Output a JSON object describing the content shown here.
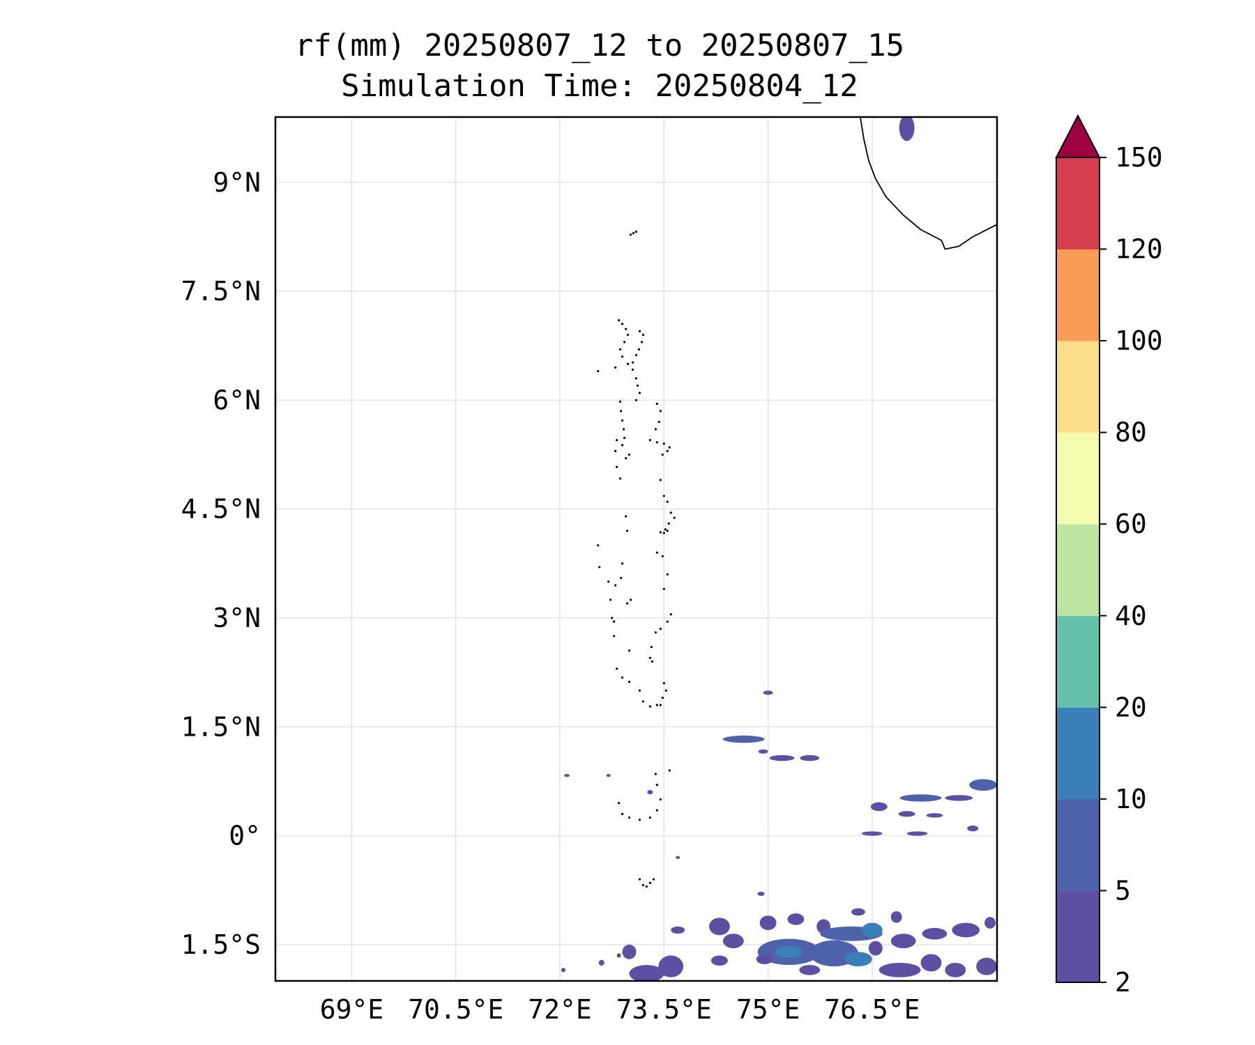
{
  "title": {
    "line1": "rf(mm) 20250807_12 to 20250807_15",
    "line2": "Simulation Time: 20250804_12"
  },
  "map": {
    "lon_range": [
      67.9,
      78.3
    ],
    "lat_range": [
      -2.0,
      9.9
    ],
    "gridlines": true,
    "lon_ticks": [
      {
        "value": 69,
        "label": "69°E"
      },
      {
        "value": 70.5,
        "label": "70.5°E"
      },
      {
        "value": 72,
        "label": "72°E"
      },
      {
        "value": 73.5,
        "label": "73.5°E"
      },
      {
        "value": 75,
        "label": "75°E"
      },
      {
        "value": 76.5,
        "label": "76.5°E"
      }
    ],
    "lat_ticks": [
      {
        "value": 9,
        "label": "9°N"
      },
      {
        "value": 7.5,
        "label": "7.5°N"
      },
      {
        "value": 6,
        "label": "6°N"
      },
      {
        "value": 4.5,
        "label": "4.5°N"
      },
      {
        "value": 3,
        "label": "3°N"
      },
      {
        "value": 1.5,
        "label": "1.5°N"
      },
      {
        "value": 0,
        "label": "0°"
      },
      {
        "value": -1.5,
        "label": "1.5°S"
      }
    ]
  },
  "colorbar": {
    "levels": [
      "2",
      "5",
      "10",
      "20",
      "40",
      "60",
      "80",
      "100",
      "120",
      "150"
    ],
    "colors": [
      "#5e4fa2",
      "#4e62ab",
      "#3a7fb8",
      "#63c0ab",
      "#bde4a0",
      "#f4fbac",
      "#fddf8b",
      "#f99c58",
      "#d53e4f",
      "#9e0142"
    ],
    "extend": "max"
  },
  "rain_cells": [
    {
      "lon": 75.0,
      "lat": 1.97,
      "rlon": 0.07,
      "rlat": 0.03,
      "cls": 0
    },
    {
      "lon": 74.65,
      "lat": 1.33,
      "rlon": 0.3,
      "rlat": 0.05,
      "cls": 1
    },
    {
      "lon": 74.93,
      "lat": 1.16,
      "rlon": 0.07,
      "rlat": 0.03,
      "cls": 0
    },
    {
      "lon": 75.2,
      "lat": 1.07,
      "rlon": 0.18,
      "rlat": 0.04,
      "cls": 0
    },
    {
      "lon": 75.6,
      "lat": 1.07,
      "rlon": 0.14,
      "rlat": 0.04,
      "cls": 0
    },
    {
      "lon": 72.1,
      "lat": 0.83,
      "rlon": 0.04,
      "rlat": 0.02,
      "cls": 0
    },
    {
      "lon": 72.7,
      "lat": 0.83,
      "rlon": 0.03,
      "rlat": 0.02,
      "cls": 0
    },
    {
      "lon": 73.3,
      "lat": 0.6,
      "rlon": 0.04,
      "rlat": 0.03,
      "cls": 0
    },
    {
      "lon": 76.6,
      "lat": 0.4,
      "rlon": 0.12,
      "rlat": 0.06,
      "cls": 0
    },
    {
      "lon": 77.2,
      "lat": 0.52,
      "rlon": 0.3,
      "rlat": 0.05,
      "cls": 1
    },
    {
      "lon": 77.75,
      "lat": 0.52,
      "rlon": 0.2,
      "rlat": 0.04,
      "cls": 0
    },
    {
      "lon": 78.1,
      "lat": 0.7,
      "rlon": 0.2,
      "rlat": 0.08,
      "cls": 1
    },
    {
      "lon": 77.0,
      "lat": 0.3,
      "rlon": 0.12,
      "rlat": 0.04,
      "cls": 0
    },
    {
      "lon": 77.4,
      "lat": 0.28,
      "rlon": 0.12,
      "rlat": 0.03,
      "cls": 0
    },
    {
      "lon": 76.5,
      "lat": 0.03,
      "rlon": 0.15,
      "rlat": 0.03,
      "cls": 0
    },
    {
      "lon": 77.15,
      "lat": 0.03,
      "rlon": 0.15,
      "rlat": 0.03,
      "cls": 0
    },
    {
      "lon": 77.95,
      "lat": 0.1,
      "rlon": 0.08,
      "rlat": 0.04,
      "cls": 0
    },
    {
      "lon": 73.7,
      "lat": -0.3,
      "rlon": 0.03,
      "rlat": 0.02,
      "cls": 0
    },
    {
      "lon": 74.9,
      "lat": -0.8,
      "rlon": 0.05,
      "rlat": 0.03,
      "cls": 0
    },
    {
      "lon": 76.3,
      "lat": -1.05,
      "rlon": 0.1,
      "rlat": 0.05,
      "cls": 0
    },
    {
      "lon": 76.85,
      "lat": -1.12,
      "rlon": 0.08,
      "rlat": 0.08,
      "cls": 0
    },
    {
      "lon": 73.7,
      "lat": -1.3,
      "rlon": 0.1,
      "rlat": 0.05,
      "cls": 0
    },
    {
      "lon": 74.3,
      "lat": -1.25,
      "rlon": 0.15,
      "rlat": 0.12,
      "cls": 0
    },
    {
      "lon": 74.5,
      "lat": -1.45,
      "rlon": 0.15,
      "rlat": 0.1,
      "cls": 0
    },
    {
      "lon": 75.0,
      "lat": -1.2,
      "rlon": 0.12,
      "rlat": 0.1,
      "cls": 0
    },
    {
      "lon": 75.4,
      "lat": -1.15,
      "rlon": 0.12,
      "rlat": 0.08,
      "cls": 0
    },
    {
      "lon": 75.8,
      "lat": -1.25,
      "rlon": 0.1,
      "rlat": 0.1,
      "cls": 0
    },
    {
      "lon": 76.2,
      "lat": -1.35,
      "rlon": 0.45,
      "rlat": 0.1,
      "cls": 1
    },
    {
      "lon": 76.5,
      "lat": -1.3,
      "rlon": 0.15,
      "rlat": 0.1,
      "cls": 2
    },
    {
      "lon": 76.95,
      "lat": -1.45,
      "rlon": 0.18,
      "rlat": 0.1,
      "cls": 0
    },
    {
      "lon": 77.4,
      "lat": -1.35,
      "rlon": 0.18,
      "rlat": 0.08,
      "cls": 0
    },
    {
      "lon": 77.85,
      "lat": -1.3,
      "rlon": 0.2,
      "rlat": 0.1,
      "cls": 0
    },
    {
      "lon": 78.2,
      "lat": -1.2,
      "rlon": 0.08,
      "rlat": 0.08,
      "cls": 0
    },
    {
      "lon": 75.3,
      "lat": -1.6,
      "rlon": 0.45,
      "rlat": 0.18,
      "cls": 1
    },
    {
      "lon": 75.3,
      "lat": -1.6,
      "rlon": 0.2,
      "rlat": 0.08,
      "cls": 2
    },
    {
      "lon": 75.95,
      "lat": -1.62,
      "rlon": 0.35,
      "rlat": 0.18,
      "cls": 1
    },
    {
      "lon": 76.3,
      "lat": -1.7,
      "rlon": 0.2,
      "rlat": 0.1,
      "cls": 2
    },
    {
      "lon": 74.95,
      "lat": -1.7,
      "rlon": 0.12,
      "rlat": 0.07,
      "cls": 0
    },
    {
      "lon": 74.3,
      "lat": -1.72,
      "rlon": 0.12,
      "rlat": 0.07,
      "cls": 0
    },
    {
      "lon": 73.6,
      "lat": -1.8,
      "rlon": 0.18,
      "rlat": 0.15,
      "cls": 0
    },
    {
      "lon": 73.25,
      "lat": -1.9,
      "rlon": 0.25,
      "rlat": 0.12,
      "cls": 0
    },
    {
      "lon": 73.0,
      "lat": -1.6,
      "rlon": 0.1,
      "rlat": 0.1,
      "cls": 0
    },
    {
      "lon": 72.6,
      "lat": -1.75,
      "rlon": 0.04,
      "rlat": 0.04,
      "cls": 0
    },
    {
      "lon": 72.05,
      "lat": -1.85,
      "rlon": 0.03,
      "rlat": 0.03,
      "cls": 0
    },
    {
      "lon": 72.85,
      "lat": -1.65,
      "rlon": 0.03,
      "rlat": 0.03,
      "cls": 0
    },
    {
      "lon": 76.9,
      "lat": -1.85,
      "rlon": 0.3,
      "rlat": 0.1,
      "cls": 0
    },
    {
      "lon": 77.35,
      "lat": -1.75,
      "rlon": 0.15,
      "rlat": 0.12,
      "cls": 0
    },
    {
      "lon": 77.7,
      "lat": -1.85,
      "rlon": 0.15,
      "rlat": 0.1,
      "cls": 0
    },
    {
      "lon": 78.15,
      "lat": -1.8,
      "rlon": 0.15,
      "rlat": 0.12,
      "cls": 0
    },
    {
      "lon": 75.6,
      "lat": -1.85,
      "rlon": 0.15,
      "rlat": 0.07,
      "cls": 0
    },
    {
      "lon": 76.55,
      "lat": -1.55,
      "rlon": 0.1,
      "rlat": 0.1,
      "cls": 0
    },
    {
      "lon": 77.0,
      "lat": 9.75,
      "rlon": 0.11,
      "rlat": 0.18,
      "cls": 0
    }
  ],
  "coastline": [
    [
      76.33,
      9.9
    ],
    [
      76.38,
      9.6
    ],
    [
      76.45,
      9.3
    ],
    [
      76.55,
      9.05
    ],
    [
      76.7,
      8.8
    ],
    [
      76.95,
      8.55
    ],
    [
      77.2,
      8.35
    ],
    [
      77.5,
      8.2
    ],
    [
      77.55,
      8.08
    ],
    [
      77.75,
      8.12
    ],
    [
      77.95,
      8.25
    ],
    [
      78.3,
      8.42
    ]
  ],
  "islands": [
    [
      73.02,
      8.28
    ],
    [
      73.06,
      8.3
    ],
    [
      73.1,
      8.32
    ],
    [
      72.85,
      7.1
    ],
    [
      72.9,
      7.05
    ],
    [
      72.95,
      6.98
    ],
    [
      72.98,
      6.9
    ],
    [
      72.93,
      6.8
    ],
    [
      72.87,
      6.7
    ],
    [
      72.9,
      6.6
    ],
    [
      72.98,
      6.5
    ],
    [
      73.05,
      6.42
    ],
    [
      73.1,
      6.3
    ],
    [
      73.12,
      6.2
    ],
    [
      73.15,
      6.1
    ],
    [
      73.1,
      6.0
    ],
    [
      73.15,
      6.95
    ],
    [
      73.2,
      6.9
    ],
    [
      73.18,
      6.8
    ],
    [
      73.14,
      6.7
    ],
    [
      73.1,
      6.62
    ],
    [
      73.05,
      6.52
    ],
    [
      72.55,
      6.4
    ],
    [
      72.8,
      6.45
    ],
    [
      72.87,
      5.98
    ],
    [
      72.88,
      5.85
    ],
    [
      72.9,
      5.72
    ],
    [
      72.92,
      5.6
    ],
    [
      72.93,
      5.48
    ],
    [
      72.9,
      5.38
    ],
    [
      72.82,
      5.45
    ],
    [
      72.8,
      5.3
    ],
    [
      72.95,
      5.2
    ],
    [
      73.0,
      5.25
    ],
    [
      72.82,
      5.08
    ],
    [
      72.87,
      4.92
    ],
    [
      73.4,
      5.95
    ],
    [
      73.45,
      5.85
    ],
    [
      73.43,
      5.7
    ],
    [
      73.38,
      5.6
    ],
    [
      73.3,
      5.45
    ],
    [
      73.4,
      5.42
    ],
    [
      73.5,
      5.4
    ],
    [
      73.58,
      5.35
    ],
    [
      73.55,
      5.3
    ],
    [
      73.48,
      5.25
    ],
    [
      73.45,
      4.9
    ],
    [
      73.5,
      4.68
    ],
    [
      73.55,
      4.6
    ],
    [
      73.6,
      4.45
    ],
    [
      73.65,
      4.38
    ],
    [
      73.57,
      4.3
    ],
    [
      73.52,
      4.22
    ],
    [
      73.45,
      4.18
    ],
    [
      73.5,
      4.17
    ],
    [
      73.55,
      4.2
    ],
    [
      72.95,
      4.4
    ],
    [
      72.97,
      4.2
    ],
    [
      72.55,
      4.0
    ],
    [
      72.57,
      3.7
    ],
    [
      72.7,
      3.5
    ],
    [
      72.8,
      3.45
    ],
    [
      72.88,
      3.55
    ],
    [
      72.9,
      3.75
    ],
    [
      73.4,
      3.9
    ],
    [
      73.48,
      3.85
    ],
    [
      73.55,
      3.6
    ],
    [
      73.5,
      3.4
    ],
    [
      73.6,
      3.05
    ],
    [
      73.55,
      2.95
    ],
    [
      73.45,
      2.85
    ],
    [
      73.38,
      2.8
    ],
    [
      72.73,
      3.25
    ],
    [
      72.75,
      3.0
    ],
    [
      72.78,
      2.95
    ],
    [
      72.97,
      3.2
    ],
    [
      73.02,
      3.25
    ],
    [
      72.78,
      2.75
    ],
    [
      73.0,
      2.55
    ],
    [
      73.32,
      2.6
    ],
    [
      73.3,
      2.45
    ],
    [
      73.33,
      2.4
    ],
    [
      72.82,
      2.3
    ],
    [
      72.9,
      2.18
    ],
    [
      73.0,
      2.12
    ],
    [
      73.15,
      2.0
    ],
    [
      73.5,
      2.1
    ],
    [
      73.53,
      2.0
    ],
    [
      73.48,
      1.9
    ],
    [
      73.4,
      1.8
    ],
    [
      73.3,
      1.78
    ],
    [
      73.2,
      1.85
    ],
    [
      73.45,
      1.8
    ],
    [
      73.38,
      0.85
    ],
    [
      73.4,
      0.7
    ],
    [
      73.58,
      0.9
    ],
    [
      72.85,
      0.45
    ],
    [
      72.9,
      0.3
    ],
    [
      73.0,
      0.25
    ],
    [
      73.15,
      0.22
    ],
    [
      73.3,
      0.25
    ],
    [
      73.4,
      0.35
    ],
    [
      73.45,
      0.5
    ],
    [
      73.15,
      -0.6
    ],
    [
      73.2,
      -0.68
    ],
    [
      73.25,
      -0.7
    ],
    [
      73.3,
      -0.65
    ],
    [
      73.35,
      -0.6
    ]
  ]
}
